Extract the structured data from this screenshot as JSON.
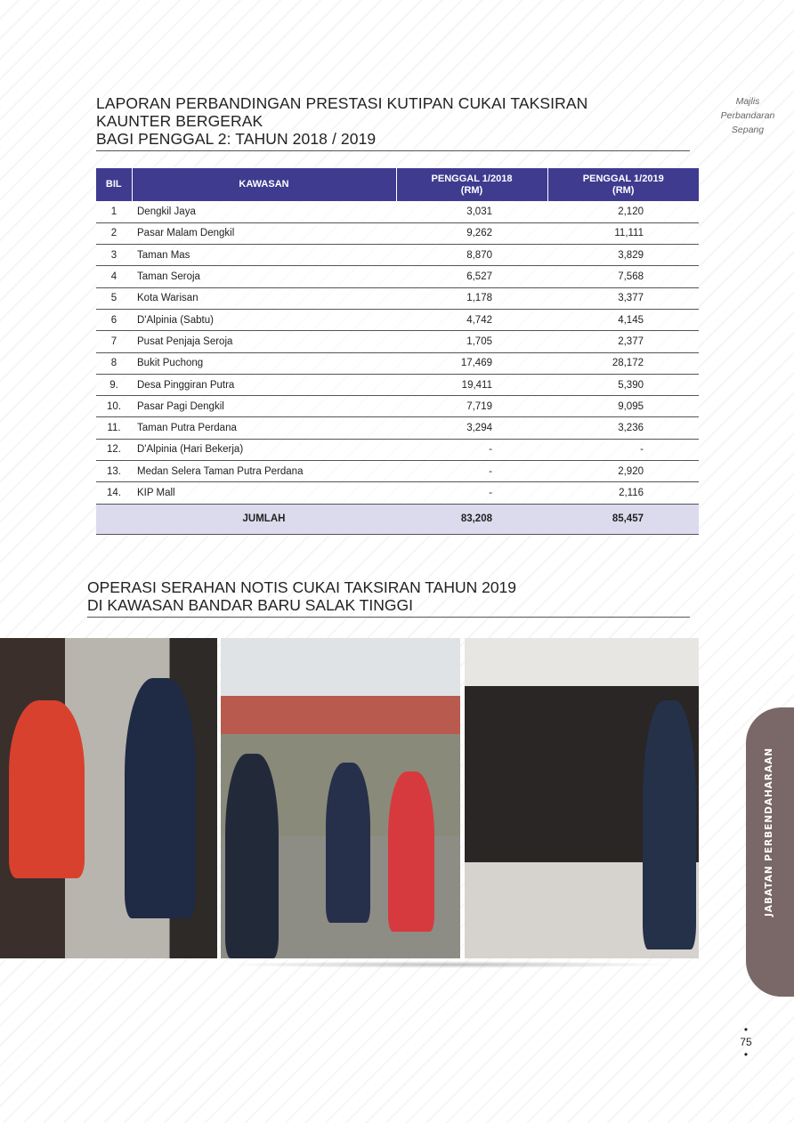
{
  "brand": [
    "Majlis",
    "Perbandaran",
    "Sepang"
  ],
  "report": {
    "title_lines": [
      "LAPORAN PERBANDINGAN PRESTASI KUTIPAN CUKAI TAKSIRAN",
      "KAUNTER BERGERAK",
      "BAGI PENGGAL 2: TAHUN 2018 / 2019"
    ]
  },
  "table": {
    "headers": [
      "BIL",
      "KAWASAN",
      "PENGGAL 1/2018\n(RM)",
      "PENGGAL 1/2019\n(RM)"
    ],
    "rows": [
      [
        "1",
        "Dengkil Jaya",
        "3,031",
        "2,120"
      ],
      [
        "2",
        "Pasar Malam Dengkil",
        "9,262",
        "11,111"
      ],
      [
        "3",
        "Taman Mas",
        "8,870",
        "3,829"
      ],
      [
        "4",
        "Taman Seroja",
        "6,527",
        "7,568"
      ],
      [
        "5",
        "Kota Warisan",
        "1,178",
        "3,377"
      ],
      [
        "6",
        "D'Alpinia (Sabtu)",
        "4,742",
        "4,145"
      ],
      [
        "7",
        "Pusat Penjaja Seroja",
        "1,705",
        "2,377"
      ],
      [
        "8",
        "Bukit Puchong",
        "17,469",
        "28,172"
      ],
      [
        "9.",
        "Desa Pinggiran Putra",
        "19,411",
        "5,390"
      ],
      [
        "10.",
        "Pasar Pagi Dengkil",
        "7,719",
        "9,095"
      ],
      [
        "11.",
        "Taman Putra Perdana",
        "3,294",
        "3,236"
      ],
      [
        "12.",
        "D'Alpinia (Hari Bekerja)",
        "-",
        "-"
      ],
      [
        "13.",
        "Medan Selera Taman Putra Perdana",
        "-",
        "2,920"
      ],
      [
        "14.",
        "KIP Mall",
        "-",
        "2,116"
      ]
    ],
    "total": {
      "label": "JUMLAH",
      "v2018": "83,208",
      "v2019": "85,457"
    }
  },
  "section2": {
    "title_lines": [
      "OPERASI SERAHAN NOTIS CUKAI TAKSIRAN TAHUN 2019",
      "DI KAWASAN BANDAR BARU SALAK TINGGI"
    ]
  },
  "side_tab": "JABATAN PERBENDAHARAAN",
  "page_number": "75",
  "colors": {
    "header": "#3f3b8f",
    "total_row": "#dcdbee",
    "side_tab": "#7a6868"
  }
}
